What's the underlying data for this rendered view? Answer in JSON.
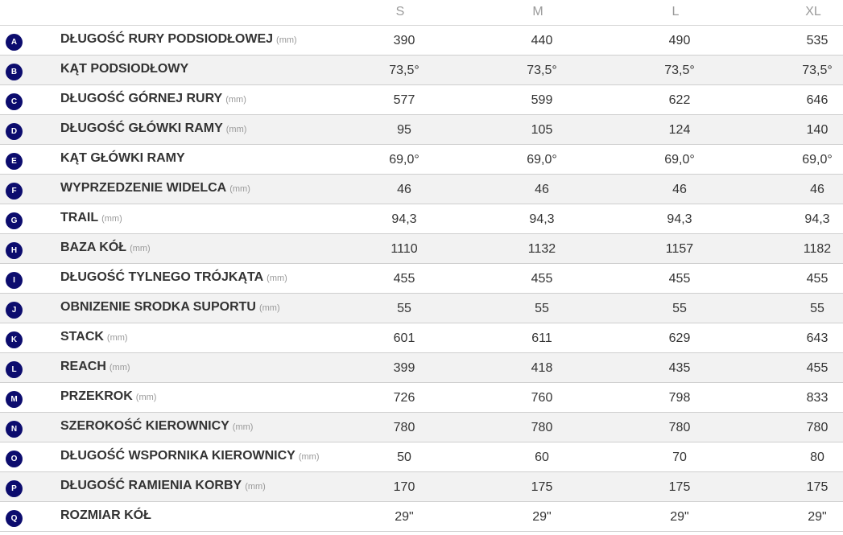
{
  "sizes": [
    "S",
    "M",
    "L",
    "XL"
  ],
  "rows": [
    {
      "letter": "A",
      "label": "DŁUGOŚĆ RURY PODSIODŁOWEJ",
      "unit": "(mm)",
      "values": [
        "390",
        "440",
        "490",
        "535"
      ]
    },
    {
      "letter": "B",
      "label": "KĄT PODSIODŁOWY",
      "unit": "",
      "values": [
        "73,5°",
        "73,5°",
        "73,5°",
        "73,5°"
      ]
    },
    {
      "letter": "C",
      "label": "DŁUGOŚĆ GÓRNEJ RURY",
      "unit": "(mm)",
      "values": [
        "577",
        "599",
        "622",
        "646"
      ]
    },
    {
      "letter": "D",
      "label": "DŁUGOŚĆ GŁÓWKI RAMY",
      "unit": "(mm)",
      "values": [
        "95",
        "105",
        "124",
        "140"
      ]
    },
    {
      "letter": "E",
      "label": "KĄT GŁÓWKI RAMY",
      "unit": "",
      "values": [
        "69,0°",
        "69,0°",
        "69,0°",
        "69,0°"
      ]
    },
    {
      "letter": "F",
      "label": "WYPRZEDZENIE WIDELCA",
      "unit": "(mm)",
      "values": [
        "46",
        "46",
        "46",
        "46"
      ]
    },
    {
      "letter": "G",
      "label": "TRAIL",
      "unit": "(mm)",
      "values": [
        "94,3",
        "94,3",
        "94,3",
        "94,3"
      ]
    },
    {
      "letter": "H",
      "label": "BAZA KÓŁ",
      "unit": "(mm)",
      "values": [
        "1110",
        "1132",
        "1157",
        "1182"
      ]
    },
    {
      "letter": "I",
      "label": "DŁUGOŚĆ TYLNEGO TRÓJKĄTA",
      "unit": "(mm)",
      "values": [
        "455",
        "455",
        "455",
        "455"
      ]
    },
    {
      "letter": "J",
      "label": "OBNIZENIE SRODKA SUPORTU",
      "unit": "(mm)",
      "values": [
        "55",
        "55",
        "55",
        "55"
      ]
    },
    {
      "letter": "K",
      "label": "STACK",
      "unit": "(mm)",
      "values": [
        "601",
        "611",
        "629",
        "643"
      ]
    },
    {
      "letter": "L",
      "label": "REACH",
      "unit": "(mm)",
      "values": [
        "399",
        "418",
        "435",
        "455"
      ]
    },
    {
      "letter": "M",
      "label": "PRZEKROK",
      "unit": "(mm)",
      "values": [
        "726",
        "760",
        "798",
        "833"
      ]
    },
    {
      "letter": "N",
      "label": "SZEROKOŚĆ KIEROWNICY",
      "unit": "(mm)",
      "values": [
        "780",
        "780",
        "780",
        "780"
      ]
    },
    {
      "letter": "O",
      "label": "DŁUGOŚĆ WSPORNIKA KIEROWNICY",
      "unit": "(mm)",
      "values": [
        "50",
        "60",
        "70",
        "80"
      ]
    },
    {
      "letter": "P",
      "label": "DŁUGOŚĆ RAMIENIA KORBY",
      "unit": "(mm)",
      "values": [
        "170",
        "175",
        "175",
        "175"
      ]
    },
    {
      "letter": "Q",
      "label": "ROZMIAR KÓŁ",
      "unit": "",
      "values": [
        "29\"",
        "29\"",
        "29\"",
        "29\""
      ]
    }
  ],
  "colors": {
    "badge": "#0c0c6e",
    "alt_row": "#f2f2f2",
    "divider": "#cfcfcf"
  }
}
